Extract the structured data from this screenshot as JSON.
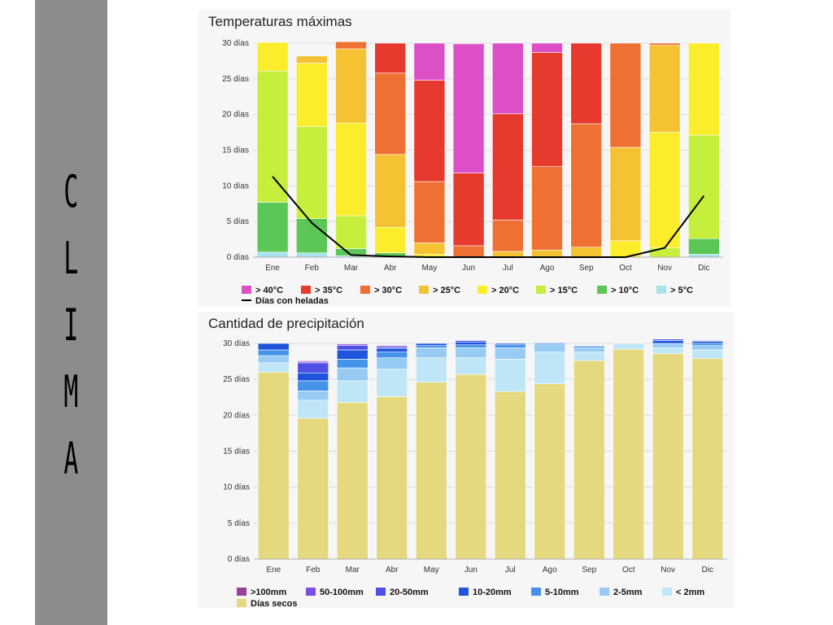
{
  "sidebar": {
    "title_letters": [
      "C",
      "L",
      "I",
      "M",
      "A"
    ]
  },
  "chart_data": [
    {
      "type": "bar",
      "stacked": true,
      "title": "Temperaturas máximas",
      "ylim": [
        0,
        30
      ],
      "yticks": [
        "0 días",
        "5 días",
        "10 días",
        "15 días",
        "20 días",
        "25 días",
        "30 días"
      ],
      "categories": [
        "Ene",
        "Feb",
        "Mar",
        "Abr",
        "May",
        "Jun",
        "Jul",
        "Ago",
        "Sep",
        "Oct",
        "Nov",
        "Dic"
      ],
      "grid": true,
      "legend_position": "bottom",
      "series": [
        {
          "name": "> 5°C",
          "color": "#a6e3ee",
          "values": [
            0.7,
            0.6,
            0.2,
            0,
            0,
            0,
            0,
            0,
            0,
            0,
            0,
            0.4
          ]
        },
        {
          "name": "> 10°C",
          "color": "#5cc756",
          "values": [
            7.0,
            4.8,
            1.0,
            0.6,
            0,
            0,
            0,
            0,
            0,
            0,
            0,
            2.2
          ]
        },
        {
          "name": "> 15°C",
          "color": "#c5ef3c",
          "values": [
            18.4,
            12.9,
            4.6,
            0,
            0,
            0,
            0,
            0,
            0,
            0,
            1.3,
            14.5
          ]
        },
        {
          "name": "> 20°C",
          "color": "#fbec2c",
          "values": [
            4.0,
            8.9,
            13.0,
            3.6,
            0.4,
            0,
            0,
            0,
            0,
            2.3,
            16.2,
            12.9
          ]
        },
        {
          "name": "> 25°C",
          "color": "#f5c233",
          "values": [
            0,
            1.0,
            10.4,
            10.2,
            1.6,
            0,
            0.8,
            1.0,
            1.4,
            13.1,
            12.2,
            0
          ]
        },
        {
          "name": "> 30°C",
          "color": "#ee7133",
          "values": [
            0,
            0,
            1.0,
            11.4,
            8.6,
            1.6,
            4.4,
            11.7,
            17.3,
            14.6,
            0.3,
            0
          ]
        },
        {
          "name": "> 35°C",
          "color": "#e63a2e",
          "values": [
            0,
            0,
            0,
            4.2,
            14.2,
            10.2,
            14.9,
            16.0,
            11.3,
            0,
            0,
            0
          ]
        },
        {
          "name": "> 40°C",
          "color": "#dc4fc6",
          "values": [
            0,
            0,
            0,
            0,
            5.2,
            18.1,
            9.9,
            1.3,
            0,
            0,
            0,
            0
          ]
        }
      ],
      "line_series": {
        "name": "Días con heladas",
        "color": "#000000",
        "values": [
          11.3,
          4.8,
          0.3,
          0.1,
          0,
          0,
          0,
          0,
          0,
          0,
          1.3,
          8.6
        ]
      }
    },
    {
      "type": "bar",
      "stacked": true,
      "title": "Cantidad de precipitación",
      "ylim": [
        0,
        30
      ],
      "yticks": [
        "0 días",
        "5 días",
        "10 días",
        "15 días",
        "20 días",
        "25 días",
        "30 días"
      ],
      "categories": [
        "Ene",
        "Feb",
        "Mar",
        "Abr",
        "May",
        "Jun",
        "Jul",
        "Ago",
        "Sep",
        "Oct",
        "Nov",
        "Dic"
      ],
      "grid": true,
      "legend_position": "bottom",
      "series": [
        {
          "name": "Días secos",
          "color": "#e4d97e",
          "values": [
            26.0,
            19.6,
            21.8,
            22.6,
            24.6,
            25.7,
            23.3,
            24.4,
            27.6,
            29.2,
            28.6,
            27.9
          ]
        },
        {
          "name": "< 2mm",
          "color": "#bfe6f6",
          "values": [
            1.3,
            2.5,
            3.0,
            3.8,
            3.4,
            2.3,
            4.5,
            4.4,
            1.2,
            0.8,
            0.8,
            1.2
          ]
        },
        {
          "name": "2-5mm",
          "color": "#97cbf4",
          "values": [
            1.0,
            1.3,
            1.8,
            1.6,
            1.4,
            1.4,
            1.6,
            1.0,
            0.6,
            0,
            0.6,
            0.6
          ]
        },
        {
          "name": "5-10mm",
          "color": "#4592ea",
          "values": [
            0.8,
            1.4,
            1.2,
            0.8,
            0.3,
            0.4,
            0.4,
            0.2,
            0.2,
            0,
            0,
            0.3
          ]
        },
        {
          "name": "10-20mm",
          "color": "#1e55dc",
          "values": [
            0.9,
            1.1,
            1.3,
            0.5,
            0.3,
            0.4,
            0.2,
            0.1,
            0.1,
            0,
            0.4,
            0.3
          ]
        },
        {
          "name": "20-50mm",
          "color": "#4f4fe6",
          "values": [
            0,
            1.4,
            0.6,
            0.2,
            0,
            0.2,
            0,
            0,
            0,
            0,
            0.2,
            0.1
          ]
        },
        {
          "name": "50-100mm",
          "color": "#7c4fe0",
          "values": [
            0,
            0.2,
            0.2,
            0.2,
            0,
            0,
            0,
            0,
            0,
            0,
            0,
            0
          ]
        },
        {
          "name": ">100mm",
          "color": "#9b3f9b",
          "values": [
            0,
            0.1,
            0,
            0,
            0,
            0,
            0,
            0,
            0,
            0,
            0,
            0
          ]
        }
      ]
    }
  ]
}
